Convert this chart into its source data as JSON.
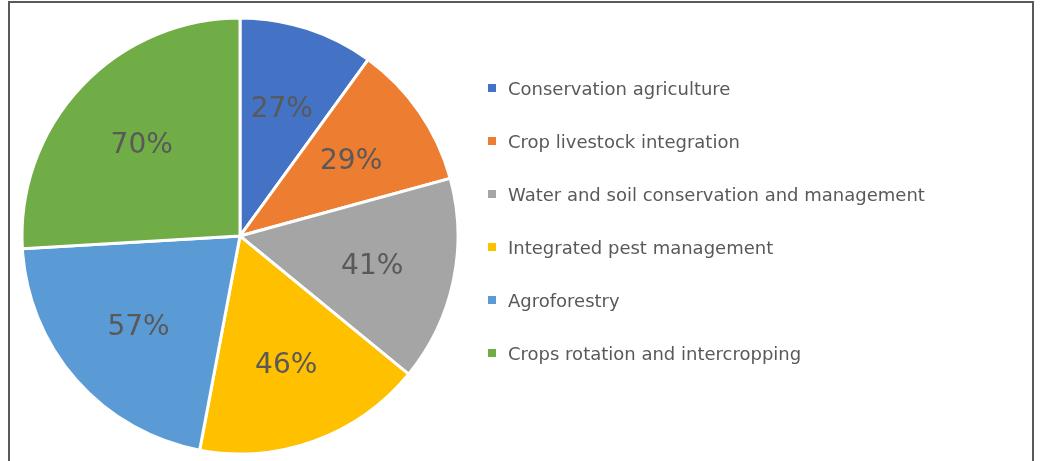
{
  "chart_data": {
    "type": "pie",
    "categories": [
      "Conservation agriculture",
      "Crop livestock integration",
      "Water and soil conservation and management",
      "Integrated pest management",
      "Agroforestry",
      "Crops rotation and intercropping"
    ],
    "values": [
      27,
      29,
      41,
      46,
      57,
      70
    ],
    "colors": [
      "#4472c4",
      "#ed7d31",
      "#a5a5a5",
      "#ffc000",
      "#5b9bd5",
      "#70ad47"
    ],
    "value_labels": [
      "27%",
      "29%",
      "41%",
      "46%",
      "57%",
      "70%"
    ],
    "legend": "right"
  }
}
